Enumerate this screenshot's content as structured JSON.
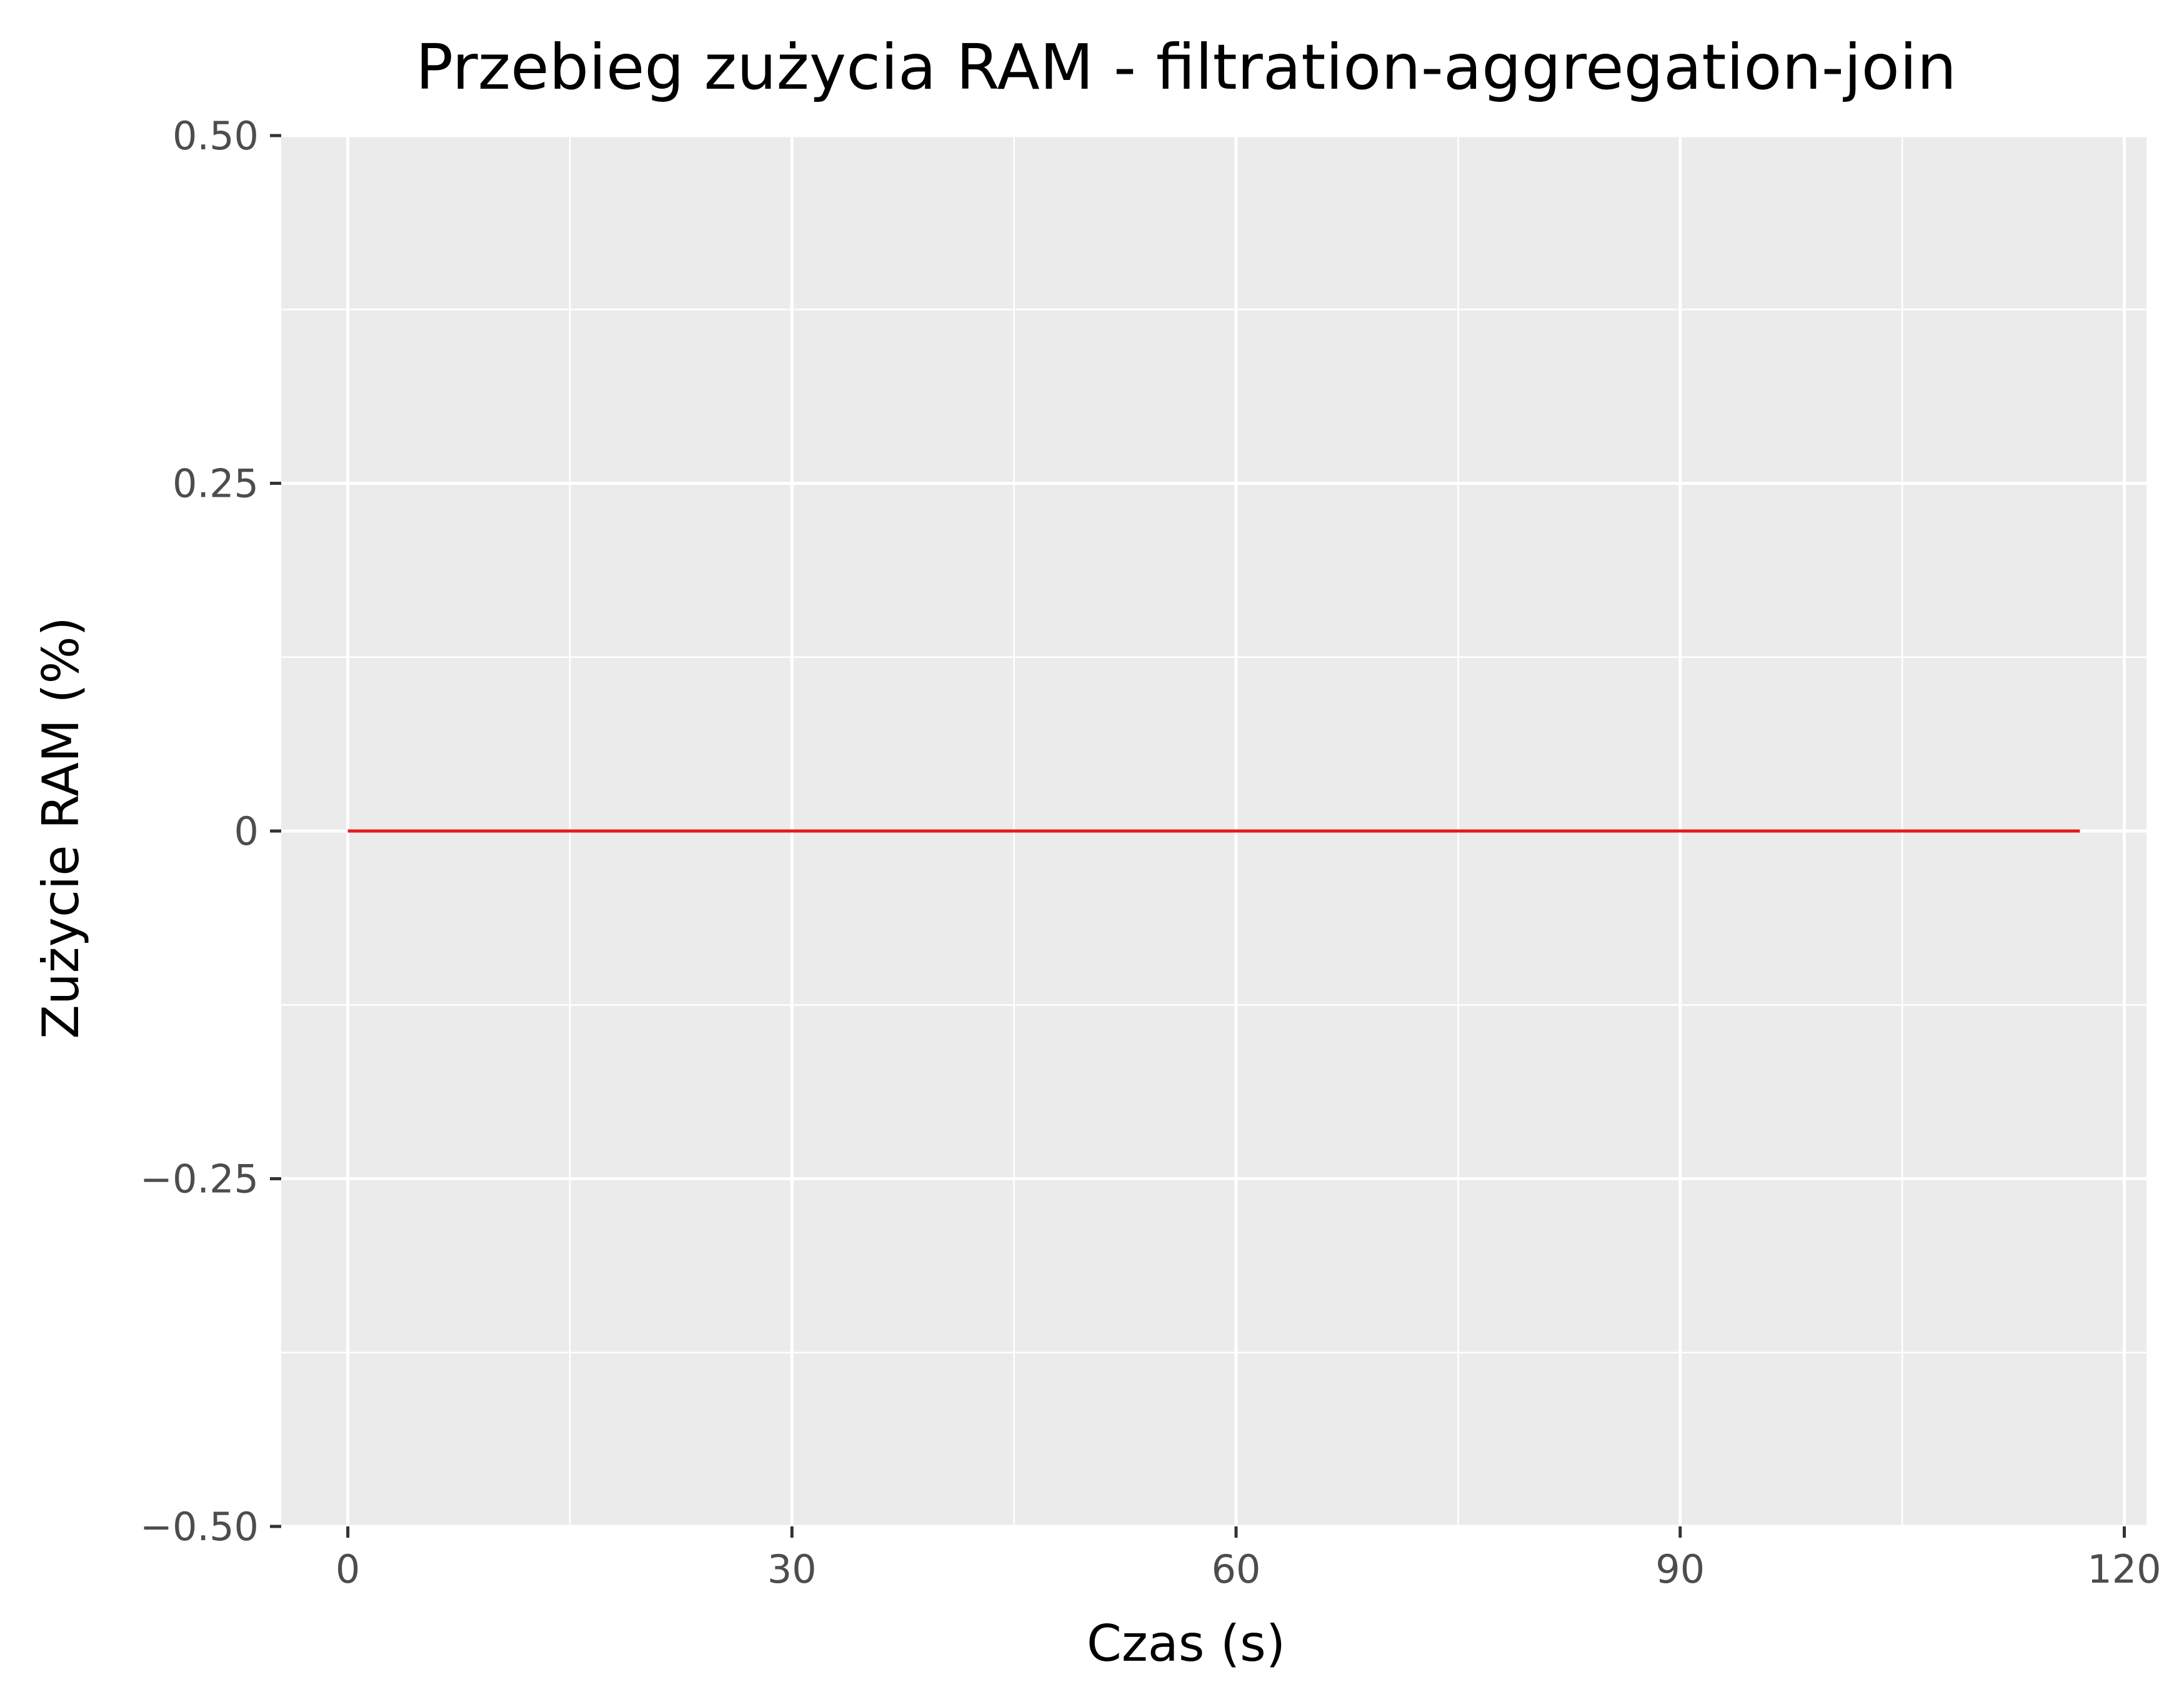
{
  "chart_data": {
    "type": "line",
    "title": "Przebieg zużycia RAM - filtration-aggregation-join",
    "xlabel": "Czas (s)",
    "ylabel": "Zużycie RAM (%)",
    "xlim": [
      -4.5,
      121.5
    ],
    "ylim": [
      -0.5,
      0.5
    ],
    "x_ticks": [
      0,
      30,
      60,
      90,
      120
    ],
    "x_tick_labels": [
      "0",
      "30",
      "60",
      "90",
      "120"
    ],
    "x_minor_ticks": [
      15,
      45,
      75,
      105
    ],
    "y_ticks": [
      -0.5,
      -0.25,
      0,
      0.25,
      0.5
    ],
    "y_tick_labels": [
      "−0.50",
      "−0.25",
      "0",
      "0.25",
      "0.50"
    ],
    "y_minor_ticks": [
      -0.375,
      -0.125,
      0.125,
      0.375
    ],
    "grid": true,
    "series": [
      {
        "color": "#e41a1c",
        "x": [
          0,
          117
        ],
        "y": [
          0,
          0
        ]
      }
    ]
  },
  "colors": {
    "panel_background": "#ebebeb",
    "grid_line": "#ffffff",
    "tick_mark": "#333333",
    "series_line": "#e41a1c"
  }
}
